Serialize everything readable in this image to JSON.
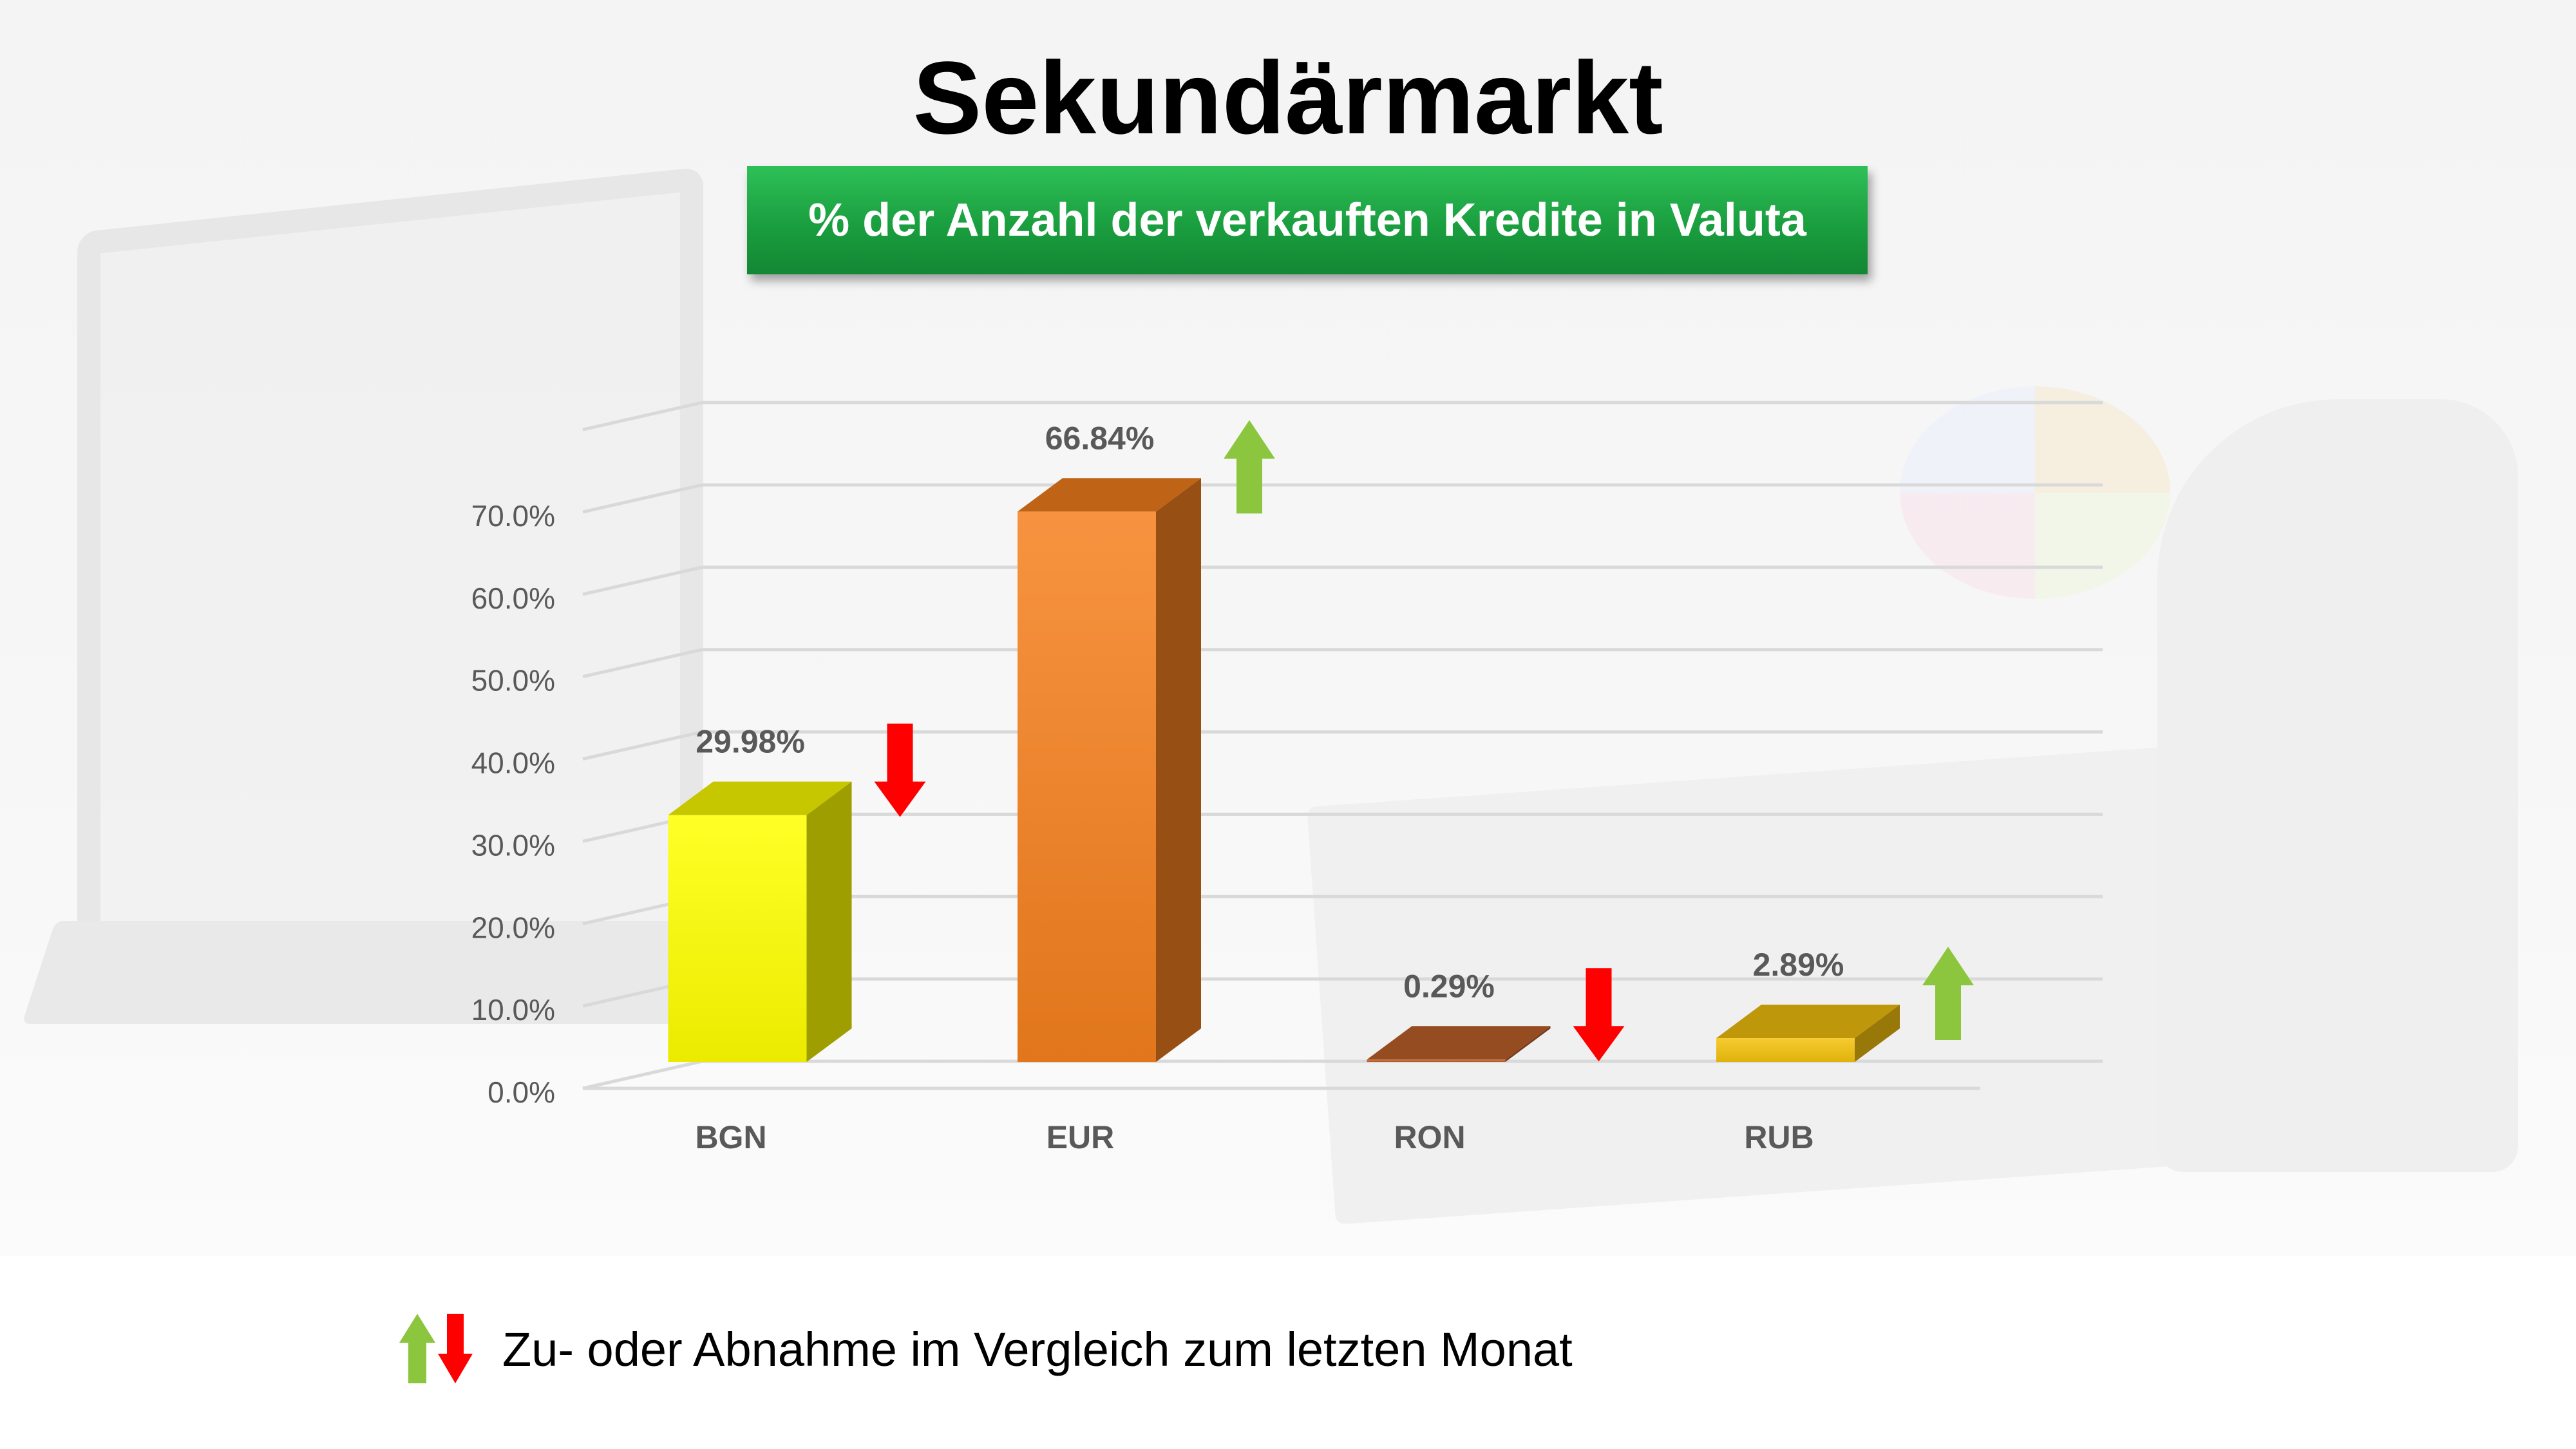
{
  "title": "Sekundärmarkt",
  "subtitle": "% der Anzahl der verkauften Kredite in Valuta",
  "legend": {
    "text": "Zu- oder Abnahme im Vergleich zum letzten Monat",
    "icons": [
      "arrow-up-icon",
      "arrow-down-icon"
    ]
  },
  "colors": {
    "up_arrow": "#8cc63f",
    "down_arrow": "#ff0000",
    "header_green": "#1a9e3f"
  },
  "chart_data": {
    "type": "bar",
    "categories": [
      "BGN",
      "EUR",
      "RON",
      "RUB"
    ],
    "values": [
      29.98,
      66.84,
      0.29,
      2.89
    ],
    "data_labels": [
      "29.98%",
      "66.84%",
      "0.29%",
      "2.89%"
    ],
    "trend": [
      "down",
      "up",
      "down",
      "up"
    ],
    "bar_colors": [
      "#ffff00",
      "#f5801e",
      "#c0622a",
      "#f4c20d"
    ],
    "ylim": [
      0,
      70
    ],
    "yticks": [
      "0.0%",
      "10.0%",
      "20.0%",
      "30.0%",
      "40.0%",
      "50.0%",
      "60.0%",
      "70.0%"
    ],
    "grid": true,
    "style": "3d-column"
  }
}
